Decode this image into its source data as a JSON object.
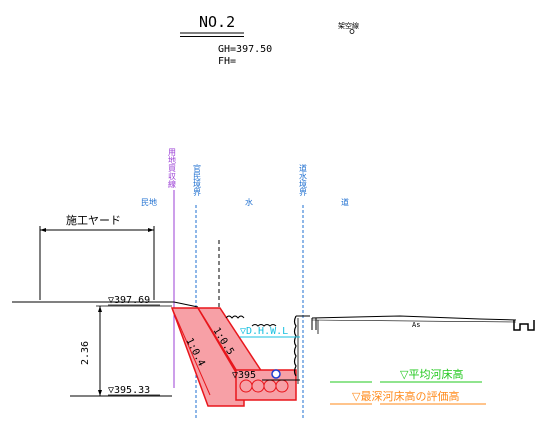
{
  "header": {
    "section_no": "NO.2",
    "gh": "GH=397.50",
    "fh": "FH=",
    "overhead_line": "架空線"
  },
  "boundaries": {
    "land_acquisition_line": "用地買収線",
    "public_private_boundary": "官民境界",
    "road_water_boundary": "道水境界"
  },
  "zones": {
    "private_land": "民地",
    "water": "水",
    "road": "道"
  },
  "construction_yard": "施工ヤード",
  "levels": {
    "top": "▽397.69",
    "bottom": "▽395.33",
    "depth": "2.36",
    "dhwl": "▽D.H.W.L",
    "bed_level": "▽395",
    "avg_riverbed": "▽平均河床高",
    "deepest_riverbed": "▽最深河床高の評価高"
  },
  "slopes": {
    "slope_a": "1:0.4",
    "slope_b": "1:0.5"
  },
  "road_surface": "As",
  "colors": {
    "boundary_blue": "#1e6fd0",
    "purple_line": "#9b3fd6",
    "structure_red": "#e8161c",
    "fill_pink": "#f7a0a6",
    "water_cyan": "#18c0e0",
    "green": "#22c81e",
    "orange": "#ff8a1a"
  }
}
